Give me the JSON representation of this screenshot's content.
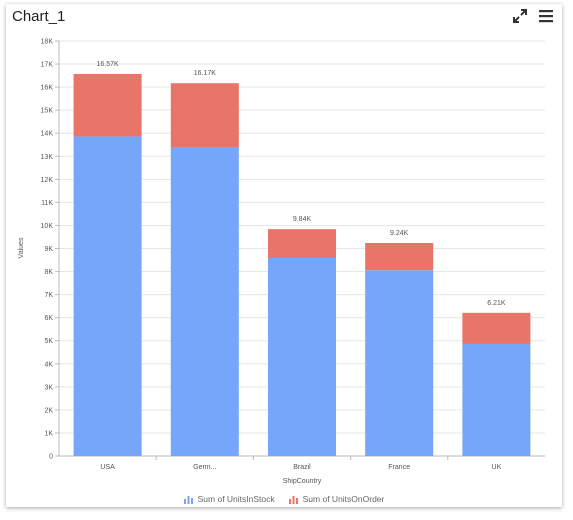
{
  "widget": {
    "title": "Chart_1",
    "toolbar": {
      "expand_icon": "expand-icon",
      "menu_icon": "hamburger-menu-icon"
    }
  },
  "chart_data": {
    "type": "bar",
    "stacked": true,
    "title": "",
    "xlabel": "ShipCountry",
    "ylabel": "Values",
    "categories": [
      "USA",
      "Germ...",
      "Brazil",
      "France",
      "UK"
    ],
    "series": [
      {
        "name": "Sum of UnitsInStock",
        "values": [
          13860,
          13370,
          8590,
          8060,
          4860
        ],
        "color": "#76a6f9"
      },
      {
        "name": "Sum of UnitsOnOrder",
        "values": [
          2710,
          2800,
          1250,
          1180,
          1350
        ],
        "color": "#e87567"
      }
    ],
    "totals_labels": [
      "16.57K",
      "16.17K",
      "9.84K",
      "9.24K",
      "6.21K"
    ],
    "ylim": [
      0,
      18000
    ],
    "yticks": [
      0,
      1000,
      2000,
      3000,
      4000,
      5000,
      6000,
      7000,
      8000,
      9000,
      10000,
      11000,
      12000,
      13000,
      14000,
      15000,
      16000,
      17000,
      18000
    ],
    "ytick_labels": [
      "0",
      "1K",
      "2K",
      "3K",
      "4K",
      "5K",
      "6K",
      "7K",
      "8K",
      "9K",
      "10K",
      "11K",
      "12K",
      "13K",
      "14K",
      "15K",
      "16K",
      "17K",
      "18K"
    ],
    "grid": true,
    "legend_position": "bottom"
  }
}
